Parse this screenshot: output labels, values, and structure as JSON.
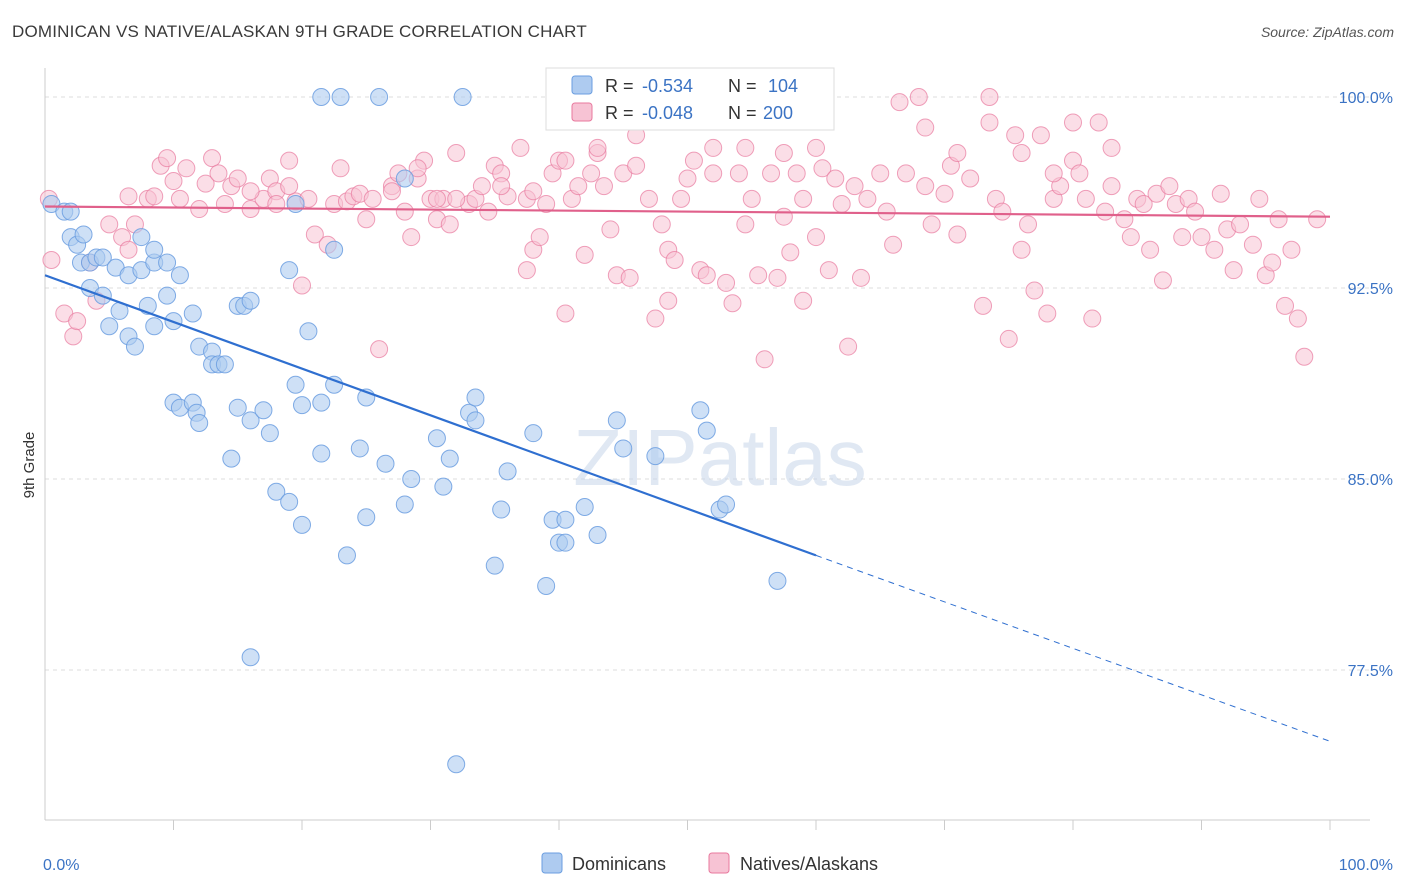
{
  "title": "DOMINICAN VS NATIVE/ALASKAN 9TH GRADE CORRELATION CHART",
  "source": "Source: ZipAtlas.com",
  "watermark": "ZIPatlas",
  "colors": {
    "blue": "#6b9ee0",
    "blue_fill": "#aecbf0",
    "blue_line": "#2f6fd0",
    "pink": "#e8799e",
    "pink_fill": "#f7c3d4",
    "pink_line": "#e0608b",
    "grid": "#dddddd",
    "label": "#3b73c4"
  },
  "legend": {
    "r_label": "R =",
    "n_label": "N =",
    "rows": [
      {
        "r": "-0.534",
        "n": "104"
      },
      {
        "r": "-0.048",
        "n": "200"
      }
    ]
  },
  "chart_data": {
    "type": "scatter",
    "ylabel": "9th Grade",
    "x_tick_labels": [
      "0.0%",
      "100.0%"
    ],
    "y_tick_labels": [
      "100.0%",
      "92.5%",
      "85.0%",
      "77.5%"
    ],
    "y_ticks": [
      100.0,
      92.5,
      85.0,
      77.5
    ],
    "xlim": [
      0,
      100
    ],
    "ylim": [
      70.5,
      101.5
    ],
    "series": [
      {
        "name": "Dominicans",
        "color": "#6b9ee0",
        "r": -0.534,
        "n": 104,
        "trend": {
          "x0": 0,
          "y0": 93.0,
          "x1": 60,
          "y1": 82.0,
          "dash_to_x": 100,
          "dash_to_y": 74.7
        },
        "points": [
          [
            0.5,
            95.8
          ],
          [
            1.5,
            95.5
          ],
          [
            2,
            94.5
          ],
          [
            2.5,
            94.2
          ],
          [
            3,
            94.6
          ],
          [
            2.8,
            93.5
          ],
          [
            3.5,
            93.5
          ],
          [
            4,
            93.7
          ],
          [
            4.5,
            93.7
          ],
          [
            3.5,
            92.5
          ],
          [
            4.5,
            92.2
          ],
          [
            5.5,
            93.3
          ],
          [
            6.5,
            93.0
          ],
          [
            7.5,
            93.2
          ],
          [
            7.5,
            94.5
          ],
          [
            8.5,
            93.5
          ],
          [
            8.5,
            94.0
          ],
          [
            9.5,
            93.5
          ],
          [
            10.5,
            93.0
          ],
          [
            5,
            91.0
          ],
          [
            5.8,
            91.6
          ],
          [
            6.5,
            90.6
          ],
          [
            7,
            90.2
          ],
          [
            8,
            91.8
          ],
          [
            8.5,
            91.0
          ],
          [
            10,
            91.2
          ],
          [
            9.5,
            92.2
          ],
          [
            11.5,
            91.5
          ],
          [
            12,
            90.2
          ],
          [
            13,
            90.0
          ],
          [
            15,
            91.8
          ],
          [
            15.5,
            91.8
          ],
          [
            16,
            92.0
          ],
          [
            19,
            93.2
          ],
          [
            20.5,
            90.8
          ],
          [
            22.5,
            94.0
          ],
          [
            13,
            89.5
          ],
          [
            13.5,
            89.5
          ],
          [
            14,
            89.5
          ],
          [
            10,
            88.0
          ],
          [
            10.5,
            87.8
          ],
          [
            11.5,
            88.0
          ],
          [
            11.8,
            87.6
          ],
          [
            12,
            87.2
          ],
          [
            16,
            87.3
          ],
          [
            17,
            87.7
          ],
          [
            17.5,
            86.8
          ],
          [
            15,
            87.8
          ],
          [
            20,
            87.9
          ],
          [
            21.5,
            88.0
          ],
          [
            22.5,
            88.7
          ],
          [
            19.5,
            88.7
          ],
          [
            25,
            88.2
          ],
          [
            14.5,
            85.8
          ],
          [
            21.5,
            86.0
          ],
          [
            24.5,
            86.2
          ],
          [
            26.5,
            85.6
          ],
          [
            28.5,
            85.0
          ],
          [
            30.5,
            86.6
          ],
          [
            31.5,
            85.8
          ],
          [
            31,
            84.7
          ],
          [
            33,
            87.6
          ],
          [
            33.5,
            87.3
          ],
          [
            33.5,
            88.2
          ],
          [
            36,
            85.3
          ],
          [
            38,
            86.8
          ],
          [
            44.5,
            87.3
          ],
          [
            45,
            86.2
          ],
          [
            47.5,
            85.9
          ],
          [
            51,
            87.7
          ],
          [
            51.5,
            86.9
          ],
          [
            18,
            84.5
          ],
          [
            19,
            84.1
          ],
          [
            20,
            83.2
          ],
          [
            23.5,
            82.0
          ],
          [
            25,
            83.5
          ],
          [
            28,
            84.0
          ],
          [
            35.5,
            83.8
          ],
          [
            35,
            81.6
          ],
          [
            39.5,
            83.4
          ],
          [
            40,
            82.5
          ],
          [
            40.5,
            83.4
          ],
          [
            40.5,
            82.5
          ],
          [
            42,
            83.9
          ],
          [
            43,
            82.8
          ],
          [
            52.5,
            83.8
          ],
          [
            53,
            84.0
          ],
          [
            39,
            80.8
          ],
          [
            57,
            81.0
          ],
          [
            16,
            78.0
          ],
          [
            32,
            73.8
          ],
          [
            21.5,
            100.0
          ],
          [
            23,
            100.0
          ],
          [
            26,
            100.0
          ],
          [
            32.5,
            100.0
          ],
          [
            28,
            96.8
          ],
          [
            19.5,
            95.8
          ],
          [
            2,
            95.5
          ]
        ]
      },
      {
        "name": "Natives/Alaskans",
        "color": "#e8799e",
        "r": -0.048,
        "n": 200,
        "trend": {
          "x0": 0,
          "y0": 95.7,
          "x1": 100,
          "y1": 95.3
        },
        "points": [
          [
            0.3,
            96.0
          ],
          [
            0.5,
            93.6
          ],
          [
            1.5,
            91.5
          ],
          [
            2.2,
            90.6
          ],
          [
            2.5,
            91.2
          ],
          [
            3.5,
            93.5
          ],
          [
            4,
            92.0
          ],
          [
            5,
            95.0
          ],
          [
            6,
            94.5
          ],
          [
            6.5,
            94.0
          ],
          [
            6.5,
            96.1
          ],
          [
            7,
            95.0
          ],
          [
            8,
            96.0
          ],
          [
            8.5,
            96.1
          ],
          [
            9,
            97.3
          ],
          [
            9.5,
            97.6
          ],
          [
            10,
            96.7
          ],
          [
            10.5,
            96.0
          ],
          [
            11,
            97.2
          ],
          [
            12,
            95.6
          ],
          [
            12.5,
            96.6
          ],
          [
            13,
            97.6
          ],
          [
            13.5,
            97.0
          ],
          [
            14,
            95.8
          ],
          [
            14.5,
            96.5
          ],
          [
            15,
            96.8
          ],
          [
            16,
            95.6
          ],
          [
            17,
            96.0
          ],
          [
            17.5,
            96.8
          ],
          [
            18,
            96.3
          ],
          [
            19,
            97.5
          ],
          [
            19.5,
            95.9
          ],
          [
            20,
            92.6
          ],
          [
            20.5,
            96.0
          ],
          [
            21,
            94.6
          ],
          [
            22,
            94.2
          ],
          [
            22.5,
            95.8
          ],
          [
            23,
            97.2
          ],
          [
            23.5,
            95.9
          ],
          [
            24,
            96.1
          ],
          [
            24.5,
            96.2
          ],
          [
            25,
            95.2
          ],
          [
            25.5,
            96.0
          ],
          [
            26,
            90.1
          ],
          [
            27,
            96.5
          ],
          [
            27.5,
            97.0
          ],
          [
            28,
            95.5
          ],
          [
            28.5,
            94.5
          ],
          [
            29,
            96.8
          ],
          [
            29.5,
            97.5
          ],
          [
            30,
            96.0
          ],
          [
            30.5,
            95.2
          ],
          [
            31,
            96.0
          ],
          [
            31.5,
            95.0
          ],
          [
            32,
            97.8
          ],
          [
            33,
            95.8
          ],
          [
            33.5,
            96.0
          ],
          [
            34,
            96.5
          ],
          [
            34.5,
            95.5
          ],
          [
            35,
            97.3
          ],
          [
            35.5,
            97.0
          ],
          [
            36,
            96.1
          ],
          [
            37,
            98.0
          ],
          [
            37.5,
            96.0
          ],
          [
            38,
            94.0
          ],
          [
            38.5,
            94.5
          ],
          [
            39,
            95.8
          ],
          [
            39.5,
            97.0
          ],
          [
            40,
            97.5
          ],
          [
            40.5,
            91.5
          ],
          [
            41,
            96.0
          ],
          [
            41.5,
            96.5
          ],
          [
            42,
            93.8
          ],
          [
            42.5,
            97.0
          ],
          [
            43,
            97.8
          ],
          [
            43.5,
            96.5
          ],
          [
            44,
            94.8
          ],
          [
            44.5,
            93.0
          ],
          [
            45,
            97.0
          ],
          [
            45.5,
            92.9
          ],
          [
            46,
            97.3
          ],
          [
            47,
            96.0
          ],
          [
            47.5,
            91.3
          ],
          [
            48,
            95.0
          ],
          [
            48.5,
            94.0
          ],
          [
            49,
            93.6
          ],
          [
            49.5,
            96.0
          ],
          [
            50,
            96.8
          ],
          [
            50.5,
            97.5
          ],
          [
            51,
            93.2
          ],
          [
            51.5,
            93.0
          ],
          [
            52,
            97.0
          ],
          [
            53,
            92.7
          ],
          [
            53.5,
            91.9
          ],
          [
            54,
            97.0
          ],
          [
            54.5,
            95.0
          ],
          [
            55,
            96.0
          ],
          [
            56,
            89.7
          ],
          [
            57,
            92.9
          ],
          [
            57.5,
            95.3
          ],
          [
            58,
            93.9
          ],
          [
            58.5,
            97.0
          ],
          [
            59,
            96.0
          ],
          [
            60,
            94.5
          ],
          [
            60.5,
            97.2
          ],
          [
            61,
            93.2
          ],
          [
            61.5,
            96.8
          ],
          [
            62,
            95.8
          ],
          [
            62.5,
            90.2
          ],
          [
            63,
            96.5
          ],
          [
            63.5,
            92.9
          ],
          [
            64,
            96.0
          ],
          [
            65,
            97.0
          ],
          [
            65.5,
            95.5
          ],
          [
            66,
            94.2
          ],
          [
            67,
            97.0
          ],
          [
            68,
            100.0
          ],
          [
            68.5,
            96.5
          ],
          [
            69,
            95.0
          ],
          [
            70,
            96.2
          ],
          [
            70.5,
            97.3
          ],
          [
            71,
            94.6
          ],
          [
            72,
            96.8
          ],
          [
            73,
            91.8
          ],
          [
            73.5,
            100.0
          ],
          [
            74,
            96.0
          ],
          [
            74.5,
            95.5
          ],
          [
            75,
            90.5
          ],
          [
            75.5,
            98.5
          ],
          [
            76,
            94.0
          ],
          [
            76.5,
            95.0
          ],
          [
            77,
            92.4
          ],
          [
            77.5,
            98.5
          ],
          [
            78,
            91.5
          ],
          [
            78.5,
            96.0
          ],
          [
            79,
            96.5
          ],
          [
            80,
            97.5
          ],
          [
            80.5,
            97.0
          ],
          [
            81,
            96.0
          ],
          [
            81.5,
            91.3
          ],
          [
            82,
            99.0
          ],
          [
            82.5,
            95.5
          ],
          [
            83,
            96.5
          ],
          [
            84,
            95.2
          ],
          [
            84.5,
            94.5
          ],
          [
            85,
            96.0
          ],
          [
            85.5,
            95.8
          ],
          [
            86,
            94.0
          ],
          [
            86.5,
            96.2
          ],
          [
            87,
            92.8
          ],
          [
            87.5,
            96.5
          ],
          [
            88,
            95.8
          ],
          [
            88.5,
            94.5
          ],
          [
            89,
            96.0
          ],
          [
            89.5,
            95.5
          ],
          [
            90,
            94.5
          ],
          [
            91,
            94.0
          ],
          [
            91.5,
            96.2
          ],
          [
            92,
            94.8
          ],
          [
            92.5,
            93.2
          ],
          [
            93,
            95.0
          ],
          [
            94,
            94.2
          ],
          [
            94.5,
            96.0
          ],
          [
            95,
            93.0
          ],
          [
            95.5,
            93.5
          ],
          [
            96,
            95.2
          ],
          [
            96.5,
            91.8
          ],
          [
            97,
            94.0
          ],
          [
            97.5,
            91.3
          ],
          [
            98,
            89.8
          ],
          [
            99,
            95.2
          ],
          [
            29,
            97.2
          ],
          [
            30.5,
            96.0
          ],
          [
            37.5,
            93.2
          ],
          [
            48.5,
            92.0
          ],
          [
            52,
            98.0
          ],
          [
            55.5,
            93.0
          ],
          [
            59,
            92.0
          ],
          [
            66.5,
            99.8
          ],
          [
            68.5,
            98.8
          ],
          [
            71,
            97.8
          ],
          [
            73.5,
            99.0
          ],
          [
            76,
            97.8
          ],
          [
            78.5,
            97.0
          ],
          [
            80,
            99.0
          ],
          [
            83,
            98.0
          ],
          [
            57.5,
            97.8
          ],
          [
            60,
            98.0
          ],
          [
            56.5,
            97.0
          ],
          [
            54.5,
            98.0
          ],
          [
            46,
            98.5
          ],
          [
            43,
            98.0
          ],
          [
            40.5,
            97.5
          ],
          [
            38,
            96.3
          ],
          [
            35.5,
            96.5
          ],
          [
            32,
            96.0
          ],
          [
            27,
            96.3
          ],
          [
            19,
            96.5
          ],
          [
            18,
            95.8
          ],
          [
            16,
            96.3
          ]
        ]
      }
    ]
  },
  "bottom_legend": [
    "Dominicans",
    "Natives/Alaskans"
  ]
}
